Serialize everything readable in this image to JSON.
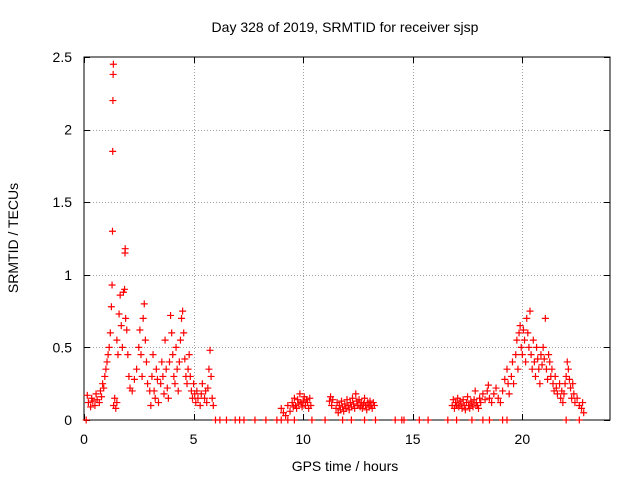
{
  "chart_data": {
    "type": "scatter",
    "title": "Day 328 of 2019, SRMTID for receiver sjsp",
    "xlabel": "GPS time / hours",
    "ylabel": "SRMTID / TECUs",
    "xlim": [
      0,
      24
    ],
    "ylim": [
      0,
      2.5
    ],
    "xticks": [
      0,
      5,
      10,
      15,
      20
    ],
    "yticks": [
      0,
      0.5,
      1,
      1.5,
      2,
      2.5
    ],
    "xtick_labels": [
      "0",
      "5",
      "10",
      "15",
      "20"
    ],
    "ytick_labels": [
      "0",
      "0.5",
      "1",
      "1.5",
      "2",
      "2.5"
    ],
    "grid": true,
    "marker": "+",
    "series": [
      {
        "name": "SRMTID",
        "color": "#ff0000",
        "points": [
          [
            0.1,
            0.0
          ],
          [
            0.15,
            0.17
          ],
          [
            0.2,
            0.12
          ],
          [
            0.3,
            0.09
          ],
          [
            0.35,
            0.15
          ],
          [
            0.4,
            0.13
          ],
          [
            0.5,
            0.1
          ],
          [
            0.55,
            0.18
          ],
          [
            0.6,
            0.14
          ],
          [
            0.7,
            0.12
          ],
          [
            0.75,
            0.2
          ],
          [
            0.8,
            0.16
          ],
          [
            0.85,
            0.25
          ],
          [
            0.9,
            0.22
          ],
          [
            0.95,
            0.3
          ],
          [
            1.0,
            0.35
          ],
          [
            1.05,
            0.4
          ],
          [
            1.1,
            0.45
          ],
          [
            1.15,
            0.5
          ],
          [
            1.2,
            0.6
          ],
          [
            1.25,
            0.78
          ],
          [
            1.28,
            0.93
          ],
          [
            1.3,
            1.3
          ],
          [
            1.31,
            1.85
          ],
          [
            1.32,
            2.2
          ],
          [
            1.33,
            2.38
          ],
          [
            1.34,
            2.45
          ],
          [
            1.35,
            0.1
          ],
          [
            1.4,
            0.15
          ],
          [
            1.45,
            0.08
          ],
          [
            1.5,
            0.12
          ],
          [
            1.5,
            0.55
          ],
          [
            1.55,
            0.45
          ],
          [
            1.6,
            0.73
          ],
          [
            1.65,
            0.86
          ],
          [
            1.7,
            0.65
          ],
          [
            1.75,
            0.5
          ],
          [
            1.8,
            0.88
          ],
          [
            1.85,
            0.9
          ],
          [
            1.87,
            1.15
          ],
          [
            1.88,
            1.18
          ],
          [
            1.9,
            0.7
          ],
          [
            1.95,
            0.62
          ],
          [
            2.0,
            0.45
          ],
          [
            2.05,
            0.3
          ],
          [
            2.1,
            0.22
          ],
          [
            2.2,
            0.2
          ],
          [
            2.3,
            0.28
          ],
          [
            2.4,
            0.35
          ],
          [
            2.5,
            0.5
          ],
          [
            2.55,
            0.62
          ],
          [
            2.6,
            0.45
          ],
          [
            2.65,
            0.3
          ],
          [
            2.7,
            0.7
          ],
          [
            2.75,
            0.8
          ],
          [
            2.8,
            0.55
          ],
          [
            2.85,
            0.4
          ],
          [
            2.9,
            0.25
          ],
          [
            3.0,
            0.2
          ],
          [
            3.05,
            0.1
          ],
          [
            3.1,
            0.3
          ],
          [
            3.15,
            0.45
          ],
          [
            3.2,
            0.2
          ],
          [
            3.25,
            0.15
          ],
          [
            3.3,
            0.35
          ],
          [
            3.35,
            0.28
          ],
          [
            3.4,
            0.12
          ],
          [
            3.5,
            0.25
          ],
          [
            3.55,
            0.4
          ],
          [
            3.6,
            0.3
          ],
          [
            3.65,
            0.18
          ],
          [
            3.7,
            0.55
          ],
          [
            3.75,
            0.35
          ],
          [
            3.8,
            0.22
          ],
          [
            3.85,
            0.15
          ],
          [
            3.9,
            0.4
          ],
          [
            3.95,
            0.72
          ],
          [
            4.0,
            0.6
          ],
          [
            4.05,
            0.45
          ],
          [
            4.1,
            0.3
          ],
          [
            4.15,
            0.25
          ],
          [
            4.2,
            0.5
          ],
          [
            4.25,
            0.35
          ],
          [
            4.3,
            0.2
          ],
          [
            4.35,
            0.4
          ],
          [
            4.4,
            0.55
          ],
          [
            4.45,
            0.7
          ],
          [
            4.5,
            0.75
          ],
          [
            4.55,
            0.6
          ],
          [
            4.6,
            0.42
          ],
          [
            4.65,
            0.3
          ],
          [
            4.7,
            0.25
          ],
          [
            4.75,
            0.35
          ],
          [
            4.8,
            0.45
          ],
          [
            4.85,
            0.3
          ],
          [
            4.9,
            0.2
          ],
          [
            4.95,
            0.15
          ],
          [
            5.0,
            0.25
          ],
          [
            5.05,
            0.18
          ],
          [
            5.1,
            0.12
          ],
          [
            5.15,
            0.2
          ],
          [
            5.2,
            0.15
          ],
          [
            5.3,
            0.1
          ],
          [
            5.35,
            0.18
          ],
          [
            5.4,
            0.25
          ],
          [
            5.5,
            0.15
          ],
          [
            5.55,
            0.2
          ],
          [
            5.6,
            0.12
          ],
          [
            5.65,
            0.22
          ],
          [
            5.7,
            0.35
          ],
          [
            5.75,
            0.48
          ],
          [
            5.8,
            0.3
          ],
          [
            5.85,
            0.15
          ],
          [
            5.9,
            0.1
          ],
          [
            6.0,
            0.0
          ],
          [
            6.2,
            0.0
          ],
          [
            6.5,
            0.0
          ],
          [
            6.9,
            0.0
          ],
          [
            7.1,
            0.0
          ],
          [
            7.3,
            0.0
          ],
          [
            7.8,
            0.0
          ],
          [
            8.3,
            0.0
          ],
          [
            8.8,
            0.0
          ],
          [
            9.0,
            0.08
          ],
          [
            9.1,
            0.05
          ],
          [
            9.2,
            0.03
          ],
          [
            9.3,
            0.1
          ],
          [
            9.4,
            0.06
          ],
          [
            9.5,
            0.12
          ],
          [
            9.55,
            0.09
          ],
          [
            9.6,
            0.15
          ],
          [
            9.65,
            0.1
          ],
          [
            9.7,
            0.08
          ],
          [
            9.75,
            0.14
          ],
          [
            9.8,
            0.11
          ],
          [
            9.85,
            0.18
          ],
          [
            9.9,
            0.12
          ],
          [
            9.95,
            0.09
          ],
          [
            10.0,
            0.13
          ],
          [
            10.05,
            0.16
          ],
          [
            10.1,
            0.1
          ],
          [
            10.15,
            0.14
          ],
          [
            10.2,
            0.12
          ],
          [
            10.25,
            0.08
          ],
          [
            10.3,
            0.15
          ],
          [
            10.35,
            0.1
          ],
          [
            9.0,
            0.0
          ],
          [
            9.3,
            0.0
          ],
          [
            9.6,
            0.0
          ],
          [
            10.4,
            0.0
          ],
          [
            11.0,
            0.0
          ],
          [
            11.2,
            0.13
          ],
          [
            11.25,
            0.16
          ],
          [
            11.3,
            0.1
          ],
          [
            11.35,
            0.14
          ],
          [
            11.5,
            0.08
          ],
          [
            11.55,
            0.12
          ],
          [
            11.6,
            0.05
          ],
          [
            11.65,
            0.1
          ],
          [
            11.7,
            0.07
          ],
          [
            11.75,
            0.13
          ],
          [
            11.8,
            0.09
          ],
          [
            11.85,
            0.06
          ],
          [
            11.9,
            0.11
          ],
          [
            11.95,
            0.08
          ],
          [
            12.0,
            0.14
          ],
          [
            12.05,
            0.1
          ],
          [
            12.1,
            0.07
          ],
          [
            12.15,
            0.12
          ],
          [
            12.2,
            0.09
          ],
          [
            12.25,
            0.15
          ],
          [
            12.3,
            0.11
          ],
          [
            12.35,
            0.08
          ],
          [
            12.4,
            0.18
          ],
          [
            12.45,
            0.13
          ],
          [
            12.5,
            0.1
          ],
          [
            12.55,
            0.14
          ],
          [
            12.6,
            0.09
          ],
          [
            12.65,
            0.12
          ],
          [
            12.7,
            0.08
          ],
          [
            12.75,
            0.11
          ],
          [
            12.8,
            0.15
          ],
          [
            12.85,
            0.1
          ],
          [
            12.9,
            0.07
          ],
          [
            12.95,
            0.12
          ],
          [
            13.0,
            0.09
          ],
          [
            13.05,
            0.13
          ],
          [
            13.1,
            0.1
          ],
          [
            13.15,
            0.08
          ],
          [
            13.2,
            0.12
          ],
          [
            13.25,
            0.1
          ],
          [
            11.8,
            0.0
          ],
          [
            12.2,
            0.0
          ],
          [
            12.8,
            0.0
          ],
          [
            13.3,
            0.0
          ],
          [
            14.2,
            0.0
          ],
          [
            14.5,
            0.0
          ],
          [
            14.6,
            0.0
          ],
          [
            15.3,
            0.0
          ],
          [
            15.7,
            0.0
          ],
          [
            16.6,
            0.0
          ],
          [
            16.8,
            0.1
          ],
          [
            16.85,
            0.14
          ],
          [
            16.9,
            0.08
          ],
          [
            16.95,
            0.12
          ],
          [
            17.0,
            0.1
          ],
          [
            17.05,
            0.15
          ],
          [
            17.1,
            0.09
          ],
          [
            17.15,
            0.13
          ],
          [
            17.2,
            0.11
          ],
          [
            17.25,
            0.08
          ],
          [
            17.3,
            0.14
          ],
          [
            17.35,
            0.1
          ],
          [
            17.4,
            0.07
          ],
          [
            17.45,
            0.12
          ],
          [
            17.5,
            0.16
          ],
          [
            17.55,
            0.1
          ],
          [
            17.6,
            0.08
          ],
          [
            17.65,
            0.13
          ],
          [
            17.7,
            0.11
          ],
          [
            17.75,
            0.09
          ],
          [
            17.8,
            0.14
          ],
          [
            17.85,
            0.2
          ],
          [
            17.9,
            0.12
          ],
          [
            17.95,
            0.1
          ],
          [
            18.0,
            0.08
          ],
          [
            18.05,
            0.15
          ],
          [
            18.1,
            0.12
          ],
          [
            18.2,
            0.18
          ],
          [
            18.3,
            0.14
          ],
          [
            18.4,
            0.2
          ],
          [
            18.45,
            0.24
          ],
          [
            18.5,
            0.15
          ],
          [
            18.6,
            0.12
          ],
          [
            18.7,
            0.18
          ],
          [
            18.8,
            0.22
          ],
          [
            18.9,
            0.15
          ],
          [
            19.0,
            0.12
          ],
          [
            19.1,
            0.2
          ],
          [
            19.2,
            0.28
          ],
          [
            19.3,
            0.35
          ],
          [
            19.35,
            0.25
          ],
          [
            19.4,
            0.18
          ],
          [
            19.5,
            0.3
          ],
          [
            19.55,
            0.4
          ],
          [
            19.6,
            0.25
          ],
          [
            19.7,
            0.45
          ],
          [
            19.75,
            0.55
          ],
          [
            19.8,
            0.35
          ],
          [
            19.85,
            0.6
          ],
          [
            19.9,
            0.65
          ],
          [
            19.95,
            0.5
          ],
          [
            20.0,
            0.45
          ],
          [
            20.05,
            0.62
          ],
          [
            20.1,
            0.55
          ],
          [
            20.15,
            0.4
          ],
          [
            20.2,
            0.7
          ],
          [
            20.25,
            0.6
          ],
          [
            20.3,
            0.5
          ],
          [
            20.35,
            0.75
          ],
          [
            20.4,
            0.45
          ],
          [
            20.45,
            0.35
          ],
          [
            20.5,
            0.55
          ],
          [
            20.55,
            0.4
          ],
          [
            20.6,
            0.3
          ],
          [
            20.65,
            0.5
          ],
          [
            20.7,
            0.42
          ],
          [
            20.75,
            0.35
          ],
          [
            20.8,
            0.25
          ],
          [
            20.85,
            0.45
          ],
          [
            20.9,
            0.38
          ],
          [
            20.95,
            0.5
          ],
          [
            21.0,
            0.42
          ],
          [
            21.05,
            0.7
          ],
          [
            21.1,
            0.35
          ],
          [
            21.15,
            0.28
          ],
          [
            21.2,
            0.45
          ],
          [
            21.25,
            0.4
          ],
          [
            21.3,
            0.3
          ],
          [
            21.35,
            0.35
          ],
          [
            21.4,
            0.25
          ],
          [
            21.45,
            0.2
          ],
          [
            21.5,
            0.3
          ],
          [
            21.55,
            0.22
          ],
          [
            21.6,
            0.18
          ],
          [
            21.7,
            0.25
          ],
          [
            21.75,
            0.15
          ],
          [
            21.8,
            0.2
          ],
          [
            21.85,
            0.12
          ],
          [
            21.9,
            0.18
          ],
          [
            21.95,
            0.25
          ],
          [
            22.0,
            0.3
          ],
          [
            22.05,
            0.4
          ],
          [
            22.1,
            0.35
          ],
          [
            22.15,
            0.28
          ],
          [
            22.2,
            0.22
          ],
          [
            22.25,
            0.15
          ],
          [
            22.3,
            0.25
          ],
          [
            22.35,
            0.18
          ],
          [
            22.4,
            0.12
          ],
          [
            22.5,
            0.15
          ],
          [
            22.6,
            0.1
          ],
          [
            22.7,
            0.08
          ],
          [
            22.75,
            0.12
          ],
          [
            22.8,
            0.05
          ],
          [
            17.0,
            0.0
          ],
          [
            17.7,
            0.0
          ],
          [
            18.2,
            0.0
          ],
          [
            18.5,
            0.0
          ],
          [
            19.1,
            0.0
          ],
          [
            19.3,
            0.0
          ],
          [
            22.0,
            0.0
          ],
          [
            22.6,
            0.0
          ]
        ]
      }
    ]
  }
}
